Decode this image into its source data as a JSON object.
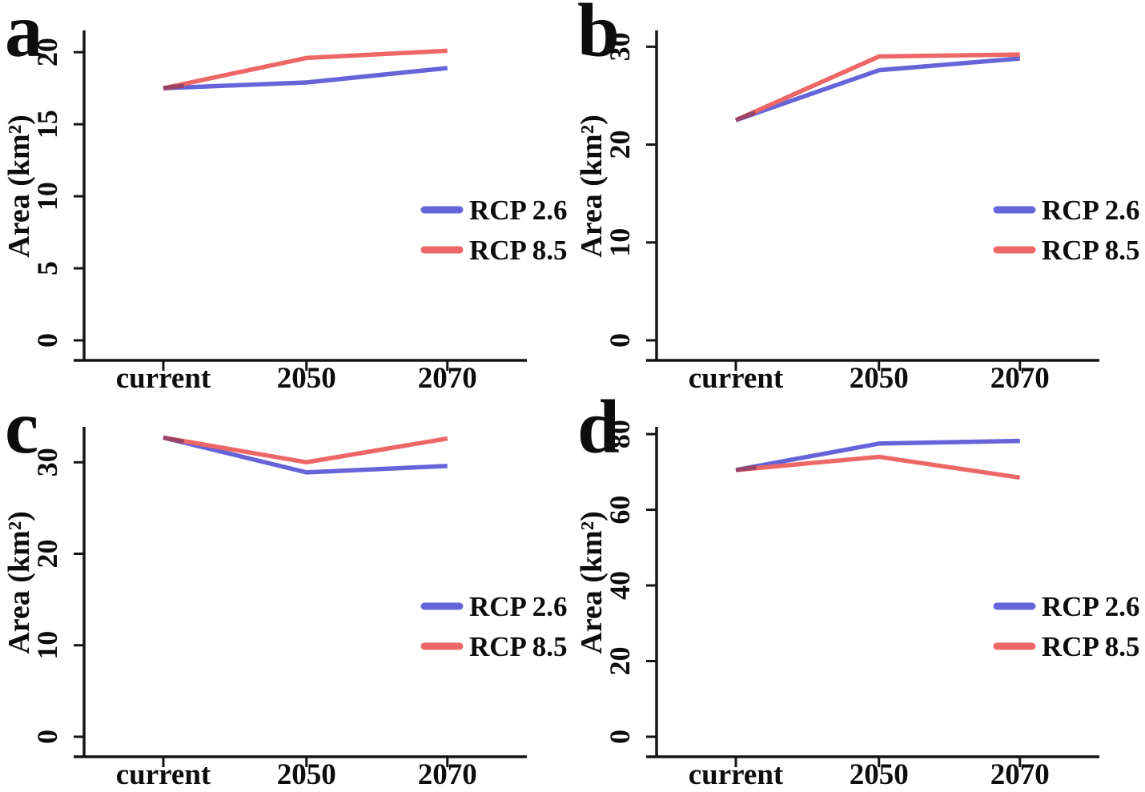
{
  "figure": {
    "background": "#ffffff",
    "axis_color": "#141414",
    "text_color": "#0d0d0d",
    "overlap_color": "#9a4468",
    "legend_labels": [
      "RCP 2.6",
      "RCP 8.5"
    ],
    "series_colors": {
      "RCP 2.6": "#6565d9",
      "RCP 8.5": "#ee6767"
    }
  },
  "chart_data": [
    {
      "type": "line",
      "panel_letter": "a",
      "ylabel": "Area (km²)",
      "categories": [
        "current",
        "2050",
        "2070"
      ],
      "y_ticks": [
        0,
        5,
        10,
        15,
        20
      ],
      "ylim": [
        0,
        21.4
      ],
      "grid": false,
      "legend_position": "right-middle",
      "series": [
        {
          "name": "RCP 2.6",
          "color": "#6565d9",
          "values": [
            17.5,
            17.9,
            18.9
          ]
        },
        {
          "name": "RCP 8.5",
          "color": "#ee6767",
          "values": [
            17.5,
            19.6,
            20.1
          ]
        }
      ]
    },
    {
      "type": "line",
      "panel_letter": "b",
      "ylabel": "Area (km²)",
      "categories": [
        "current",
        "2050",
        "2070"
      ],
      "y_ticks": [
        0,
        10,
        20,
        30
      ],
      "ylim": [
        0,
        31.5
      ],
      "grid": false,
      "legend_position": "right-middle",
      "series": [
        {
          "name": "RCP 2.6",
          "color": "#6565d9",
          "values": [
            22.5,
            27.6,
            28.8
          ]
        },
        {
          "name": "RCP 8.5",
          "color": "#ee6767",
          "values": [
            22.5,
            29.0,
            29.2
          ]
        }
      ]
    },
    {
      "type": "line",
      "panel_letter": "c",
      "ylabel": "Area (km²)",
      "categories": [
        "current",
        "2050",
        "2070"
      ],
      "y_ticks": [
        0,
        10,
        20,
        30
      ],
      "ylim": [
        0,
        33.7
      ],
      "grid": false,
      "legend_position": "right-middle",
      "series": [
        {
          "name": "RCP 2.6",
          "color": "#6565d9",
          "values": [
            32.7,
            28.9,
            29.6
          ]
        },
        {
          "name": "RCP 8.5",
          "color": "#ee6767",
          "values": [
            32.7,
            30.0,
            32.6
          ]
        }
      ]
    },
    {
      "type": "line",
      "panel_letter": "d",
      "ylabel": "Area (km²)",
      "categories": [
        "current",
        "2050",
        "2070"
      ],
      "y_ticks": [
        0,
        20,
        40,
        60,
        80
      ],
      "ylim": [
        0,
        81.5
      ],
      "grid": false,
      "legend_position": "right-middle",
      "series": [
        {
          "name": "RCP 2.6",
          "color": "#6565d9",
          "values": [
            70.5,
            77.5,
            78.2
          ]
        },
        {
          "name": "RCP 8.5",
          "color": "#ee6767",
          "values": [
            70.5,
            74.0,
            68.5
          ]
        }
      ]
    }
  ]
}
